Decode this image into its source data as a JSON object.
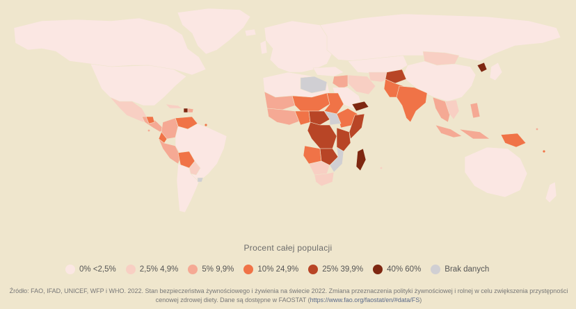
{
  "legend": {
    "title": "Procent całej populacji",
    "items": [
      {
        "label": "0%   <2,5%",
        "color": "#fbe7e3"
      },
      {
        "label": "2,5%   4,9%",
        "color": "#f8cfc3"
      },
      {
        "label": "5%   9,9%",
        "color": "#f5a994"
      },
      {
        "label": "10%   24,9%",
        "color": "#f07347"
      },
      {
        "label": "25%   39,9%",
        "color": "#b84526"
      },
      {
        "label": "40%   60%",
        "color": "#7e2711"
      },
      {
        "label": "Brak danych",
        "color": "#d0cfd3"
      }
    ]
  },
  "source": {
    "text": "Źródło: FAO, IFAD, UNICEF, WFP i WHO. 2022. Stan bezpieczeństwa żywnościowego i żywienia na świecie 2022. Zmiana przeznaczenia polityki żywnościowej i rolnej w celu zwiększenia przystępności cenowej zdrowej diety. Dane są dostępne w FAOSTAT (",
    "link": "https://www.fao.org/faostat/en/#data/FS",
    "end": ")"
  },
  "colors": {
    "background": "#efe6cd",
    "ocean": "#efe6cd"
  }
}
